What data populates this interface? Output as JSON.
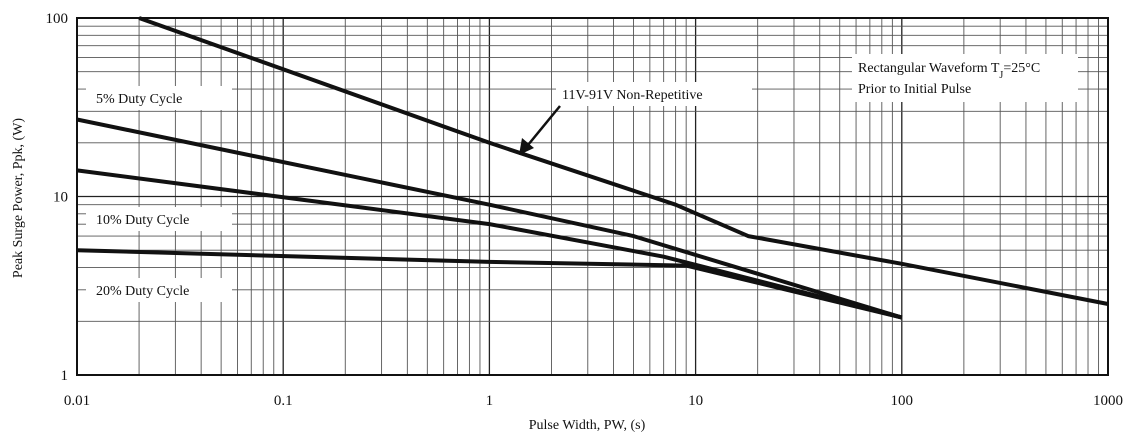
{
  "chart_data": {
    "type": "line",
    "x_scale": "log",
    "y_scale": "log",
    "xlim": [
      0.01,
      1000
    ],
    "ylim": [
      1,
      100
    ],
    "grid": true,
    "xlabel": "Pulse Width, PW, (s)",
    "ylabel": "Peak Surge Power, Ppk, (W)",
    "x_ticks": [
      {
        "value": 0.01,
        "label": "0.01"
      },
      {
        "value": 0.1,
        "label": "0.1"
      },
      {
        "value": 1,
        "label": "1"
      },
      {
        "value": 10,
        "label": "10"
      },
      {
        "value": 100,
        "label": "100"
      },
      {
        "value": 1000,
        "label": "1000"
      }
    ],
    "y_ticks": [
      {
        "value": 1,
        "label": "1"
      },
      {
        "value": 10,
        "label": "10"
      },
      {
        "value": 100,
        "label": "100"
      }
    ],
    "series": [
      {
        "id": "non-repetitive",
        "points": [
          [
            0.02,
            100
          ],
          [
            1,
            20
          ],
          [
            8,
            9
          ],
          [
            18,
            6
          ],
          [
            100,
            4.2
          ],
          [
            1000,
            2.5
          ]
        ]
      },
      {
        "id": "duty-5",
        "points": [
          [
            0.01,
            27
          ],
          [
            1,
            9
          ],
          [
            5,
            6
          ],
          [
            100,
            2.1
          ]
        ]
      },
      {
        "id": "duty-10",
        "points": [
          [
            0.01,
            14
          ],
          [
            1,
            7
          ],
          [
            7,
            4.6
          ],
          [
            100,
            2.1
          ]
        ]
      },
      {
        "id": "duty-20",
        "points": [
          [
            0.01,
            5
          ],
          [
            1,
            4.3
          ],
          [
            9,
            4.1
          ],
          [
            100,
            2.1
          ]
        ]
      }
    ],
    "annotations": {
      "label_5": "5% Duty Cycle",
      "label_10": "10% Duty Cycle",
      "label_20": "20% Duty Cycle",
      "label_nonrep": "11V-91V Non-Repetitive",
      "waveform_line1": "Rectangular Waveform T",
      "waveform_sub": "J",
      "waveform_line1_tail": "=25°C",
      "waveform_line2": "Prior to Initial Pulse"
    }
  }
}
